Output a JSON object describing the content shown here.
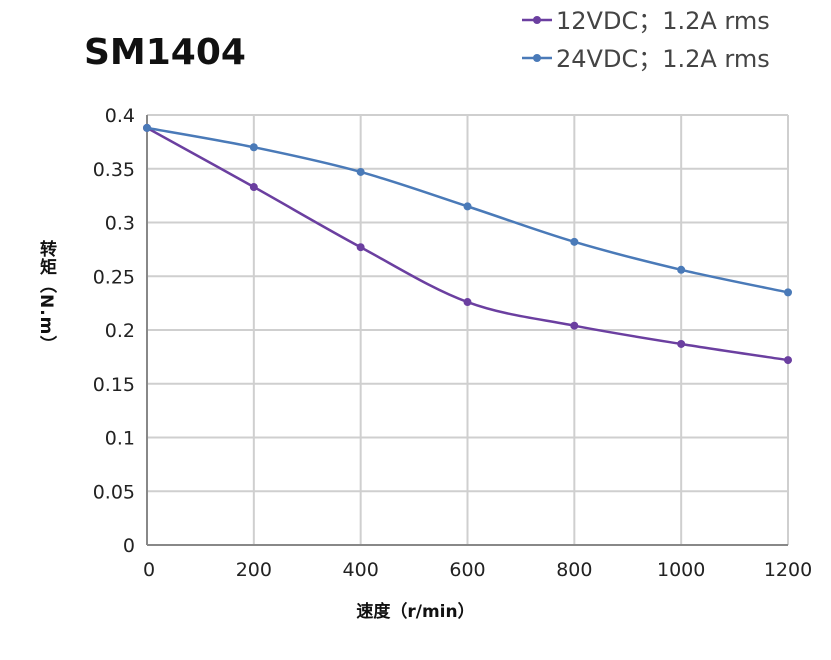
{
  "chart_data": {
    "type": "line",
    "title": "SM1404",
    "xlabel": "速度（r/min）",
    "ylabel": "转矩（N.m）",
    "x": [
      0,
      200,
      400,
      600,
      800,
      1000,
      1200
    ],
    "xlim": [
      0,
      1200
    ],
    "ylim": [
      0,
      0.4
    ],
    "xticks": [
      "0",
      "200",
      "400",
      "600",
      "800",
      "1000",
      "1200"
    ],
    "yticks": [
      "0",
      "0.05",
      "0.1",
      "0.15",
      "0.2",
      "0.25",
      "0.3",
      "0.35",
      "0.4"
    ],
    "grid": true,
    "legend_position": "top-right",
    "series": [
      {
        "name": "12VDC；1.2A rms",
        "color": "#6b3fa0",
        "values": [
          0.388,
          0.333,
          0.277,
          0.226,
          0.204,
          0.187,
          0.172
        ]
      },
      {
        "name": "24VDC；1.2A rms",
        "color": "#4a7ab8",
        "values": [
          0.388,
          0.37,
          0.347,
          0.315,
          0.282,
          0.256,
          0.235
        ]
      }
    ]
  }
}
